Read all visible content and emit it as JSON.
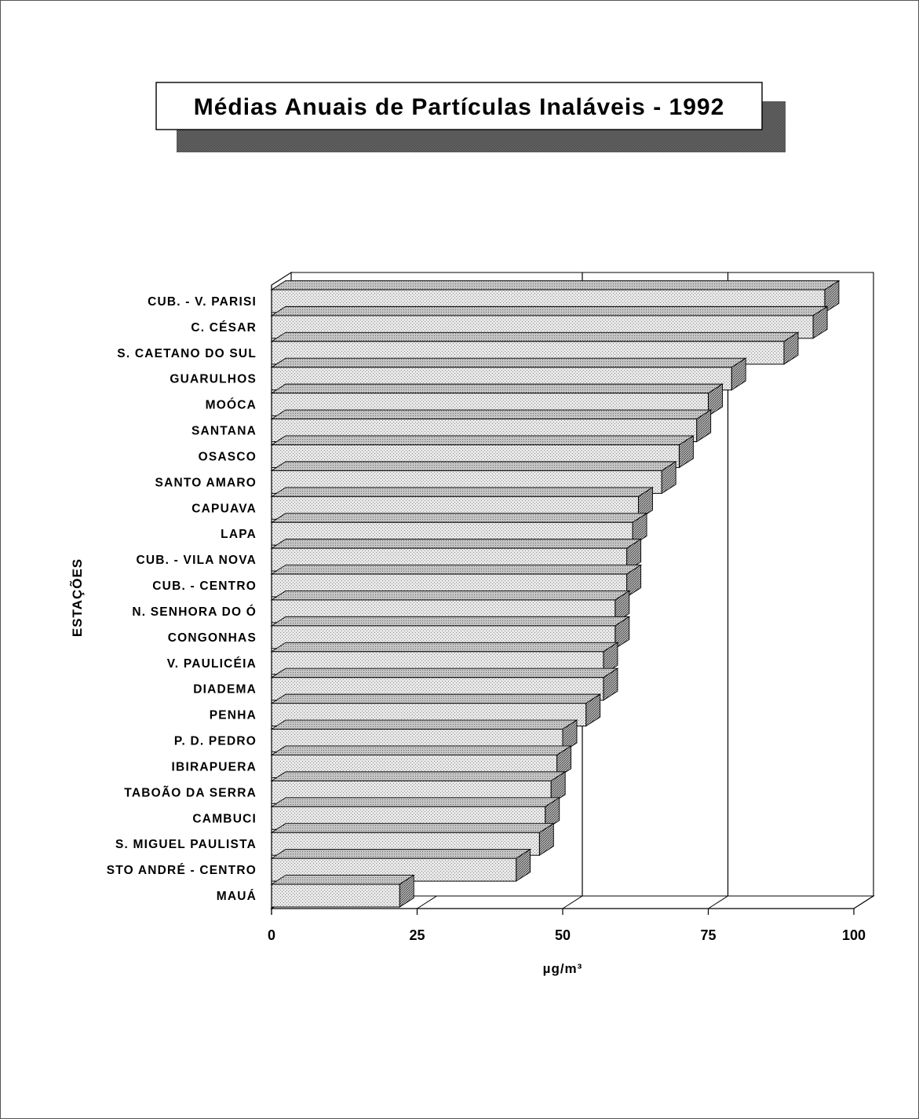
{
  "chart_data": {
    "type": "bar",
    "orientation": "horizontal",
    "title": "Médias Anuais de Partículas Inaláveis - 1992",
    "xlabel": "µg/m³",
    "ylabel": "ESTAÇÕES",
    "xlim": [
      0,
      100
    ],
    "xticks": [
      0,
      25,
      50,
      75,
      100
    ],
    "reference_lines": [
      50,
      75
    ],
    "style": "3d",
    "categories": [
      "CUB. - V. PARISI",
      "C. CÉSAR",
      "S. CAETANO DO SUL",
      "GUARULHOS",
      "MOÓCA",
      "SANTANA",
      "OSASCO",
      "SANTO AMARO",
      "CAPUAVA",
      "LAPA",
      "CUB. - VILA NOVA",
      "CUB. - CENTRO",
      "N. SENHORA DO Ó",
      "CONGONHAS",
      "V. PAULICÉIA",
      "DIADEMA",
      "PENHA",
      "P. D. PEDRO",
      "IBIRAPUERA",
      "TABOÃO DA SERRA",
      "CAMBUCI",
      "S. MIGUEL PAULISTA",
      "STO ANDRÉ - CENTRO",
      "MAUÁ"
    ],
    "values": [
      95,
      93,
      88,
      79,
      75,
      73,
      70,
      67,
      63,
      62,
      61,
      61,
      59,
      59,
      57,
      57,
      54,
      50,
      49,
      48,
      47,
      46,
      42,
      22
    ],
    "colors": {
      "bar_face": "#e4e4e4",
      "bar_top": "#bdbdbd",
      "bar_end": "#9a9a9a",
      "title_shadow": "#5a5a5a"
    }
  }
}
